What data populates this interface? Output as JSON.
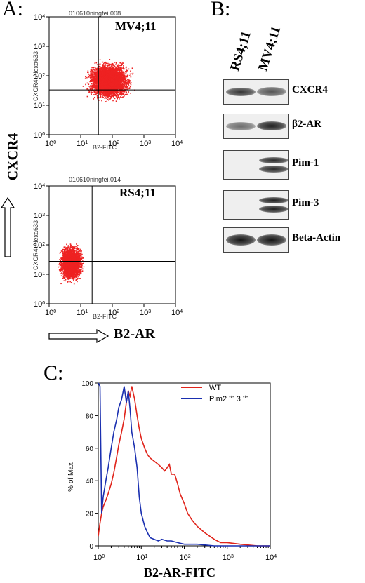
{
  "panelA": {
    "letter": "A:",
    "top_plot": {
      "file_label": "010610ningfei.008",
      "sample_label": "MV4;11",
      "x_label": "B2-FITC",
      "y_label": "CXCR4-Alexa633",
      "ticks": [
        "10",
        "10",
        "10",
        "10",
        "10"
      ],
      "tick_exponents": [
        "0",
        "1",
        "2",
        "3",
        "4"
      ]
    },
    "bottom_plot": {
      "file_label": "010610ningfei.014",
      "sample_label": "RS4;11",
      "x_label": "B2-FITC",
      "y_label": "CXCR4-Alexa633",
      "ticks": [
        "10",
        "10",
        "10",
        "10",
        "10"
      ],
      "tick_exponents": [
        "0",
        "1",
        "2",
        "3",
        "4"
      ]
    },
    "y_arrow_label": "CXCR4",
    "x_arrow_label": "B2-AR",
    "dot_color": "#ee2222"
  },
  "panelB": {
    "letter": "B:",
    "lanes": [
      "RS4;11",
      "MV4;11"
    ],
    "blots": [
      {
        "label": "CXCR4",
        "rs4": 0.85,
        "mv4": 0.7
      },
      {
        "label": "β2-AR",
        "rs4": 0.6,
        "mv4": 0.95
      },
      {
        "label": "Pim-1",
        "rs4": 0.0,
        "mv4": 0.9
      },
      {
        "label": "Pim-3",
        "rs4": 0.0,
        "mv4": 0.95
      },
      {
        "label": "Beta-Actin",
        "rs4": 1.0,
        "mv4": 1.0
      }
    ]
  },
  "panelC": {
    "letter": "C:",
    "chart_data": {
      "type": "line",
      "xlabel": "B2-AR-FITC",
      "ylabel": "% of Max",
      "x_scale": "log",
      "xlim": [
        1,
        10000
      ],
      "ylim": [
        0,
        100
      ],
      "y_ticks": [
        "0",
        "20",
        "40",
        "60",
        "80",
        "100"
      ],
      "x_ticks": [
        "10",
        "10",
        "10",
        "10",
        "10"
      ],
      "x_tick_exponents": [
        "0",
        "1",
        "2",
        "3",
        "4"
      ],
      "legend_position": "top-right",
      "series": [
        {
          "name": "WT",
          "color": "#e0241b",
          "x": [
            1,
            1.1,
            1.2,
            1.3,
            1.5,
            1.7,
            2,
            2.3,
            2.7,
            3,
            3.5,
            4,
            4.5,
            5,
            5.5,
            6,
            7,
            8,
            9,
            10,
            12,
            14,
            16,
            20,
            25,
            30,
            35,
            40,
            45,
            50,
            60,
            70,
            80,
            100,
            120,
            150,
            200,
            300,
            500,
            700,
            1000,
            2000,
            5000,
            10000
          ],
          "y": [
            6,
            14,
            20,
            24,
            28,
            32,
            38,
            45,
            55,
            62,
            70,
            78,
            88,
            95,
            92,
            98,
            90,
            80,
            72,
            66,
            60,
            56,
            54,
            52,
            50,
            48,
            46,
            48,
            50,
            44,
            44,
            38,
            32,
            26,
            20,
            16,
            12,
            8,
            4,
            2,
            2,
            1,
            0,
            0
          ]
        },
        {
          "name": "Pim2 -/- 3 -/-",
          "color": "#1a2fb0",
          "x": [
            1,
            1.1,
            1.2,
            1.3,
            1.5,
            1.7,
            2,
            2.3,
            2.7,
            3,
            3.5,
            4,
            4.5,
            5,
            5.5,
            6,
            7,
            8,
            9,
            10,
            12,
            14,
            16,
            20,
            25,
            30,
            40,
            50,
            70,
            100,
            200,
            500,
            1000,
            10000
          ],
          "y": [
            100,
            98,
            20,
            30,
            40,
            48,
            60,
            70,
            78,
            85,
            90,
            98,
            88,
            95,
            84,
            70,
            60,
            48,
            30,
            20,
            12,
            8,
            5,
            4,
            3,
            4,
            3,
            3,
            2,
            1,
            1,
            0,
            0,
            0
          ]
        }
      ]
    }
  }
}
